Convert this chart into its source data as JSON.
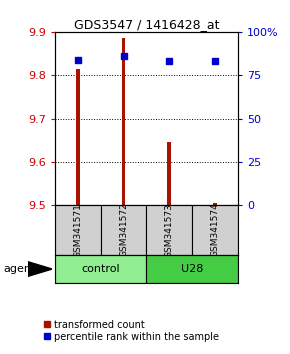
{
  "title": "GDS3547 / 1416428_at",
  "samples": [
    "GSM341571",
    "GSM341572",
    "GSM341573",
    "GSM341574"
  ],
  "groups": [
    "control",
    "control",
    "U28",
    "U28"
  ],
  "bar_values": [
    9.815,
    9.885,
    9.645,
    9.505
  ],
  "percentile_values": [
    84,
    86,
    83,
    83
  ],
  "ylim_left": [
    9.5,
    9.9
  ],
  "ylim_right": [
    0,
    100
  ],
  "yticks_left": [
    9.5,
    9.6,
    9.7,
    9.8,
    9.9
  ],
  "ytick_labels_left": [
    "9.5",
    "9.6",
    "9.7",
    "9.8",
    "9.9"
  ],
  "ytick_labels_right": [
    "0",
    "25",
    "50",
    "75",
    "100%"
  ],
  "bar_color": "#aa1100",
  "dot_color": "#0000cc",
  "bar_bottom": 9.5,
  "bar_width": 0.08,
  "legend_red_label": "transformed count",
  "legend_blue_label": "percentile rank within the sample",
  "agent_label": "agent",
  "left_tick_color": "#cc0000",
  "right_tick_color": "#0000cc",
  "gray_box_color": "#d0d0d0",
  "control_color": "#90ee90",
  "u28_color": "#44cc44"
}
